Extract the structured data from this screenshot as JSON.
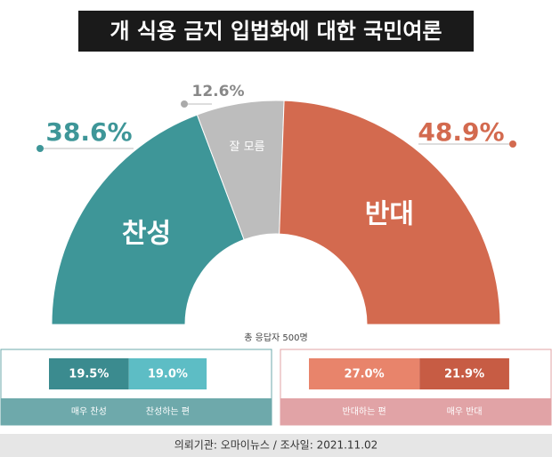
{
  "title": "개 식용 금지 입법화에 대한 국민여론",
  "chart_data": [
    {
      "type": "half-donut",
      "categories": [
        "찬성",
        "잘 모름",
        "반대"
      ],
      "values": [
        38.6,
        12.6,
        48.9
      ],
      "value_labels": [
        "38.6%",
        "12.6%",
        "48.9%"
      ],
      "colors": [
        "#3e9698",
        "#bdbdbd",
        "#d36a4f"
      ]
    },
    {
      "type": "stacked-bar",
      "categories": [
        "매우 찬성",
        "찬성하는 편"
      ],
      "values": [
        19.5,
        19.0
      ],
      "value_labels": [
        "19.5%",
        "19.0%"
      ],
      "colors": [
        "#3b8b8f",
        "#5dbdc5"
      ]
    },
    {
      "type": "stacked-bar",
      "categories": [
        "반대하는 편",
        "매우 반대"
      ],
      "values": [
        27.0,
        21.9
      ],
      "value_labels": [
        "27.0%",
        "21.9%"
      ],
      "colors": [
        "#e8846b",
        "#c75c44"
      ]
    }
  ],
  "note": "총 응답자 500명",
  "footer": "의뢰기관: 오마이뉴스  /  조사일: 2021.11.02"
}
